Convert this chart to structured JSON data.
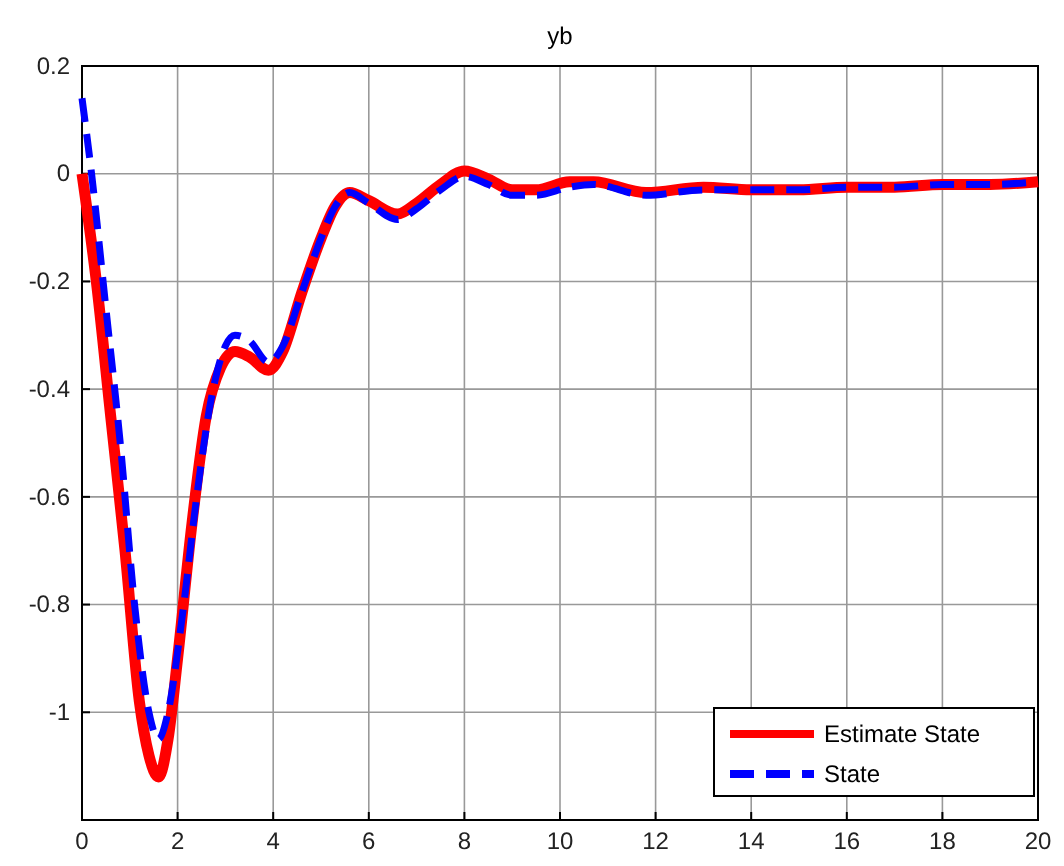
{
  "chart_data": {
    "type": "line",
    "title": "yb",
    "xlim": [
      0,
      20
    ],
    "xticks": [
      0,
      2,
      4,
      6,
      8,
      10,
      12,
      14,
      16,
      18,
      20
    ],
    "ylim": [
      -1.2,
      0.2
    ],
    "yticks": [
      {
        "value": -1.2,
        "label": null
      },
      -1,
      -0.8,
      -0.6,
      -0.4,
      -0.2,
      0,
      0.2
    ],
    "grid": true,
    "legend": "bottom right",
    "series": [
      {
        "name": "Estimate State",
        "color": "#ff0000",
        "line_style": "solid",
        "x": [
          0,
          0.3,
          0.6,
          0.9,
          1.2,
          1.4,
          1.6,
          1.8,
          2.0,
          2.3,
          2.6,
          2.9,
          3.2,
          3.5,
          3.9,
          4.2,
          4.6,
          5.0,
          5.3,
          5.6,
          6.0,
          6.6,
          7.0,
          7.5,
          8.0,
          8.5,
          9.0,
          9.5,
          10.2,
          10.7,
          11.8,
          13,
          14,
          15,
          16,
          17,
          18,
          19,
          20
        ],
        "values": [
          0,
          -0.2,
          -0.45,
          -0.7,
          -0.98,
          -1.08,
          -1.12,
          -1.05,
          -0.9,
          -0.65,
          -0.45,
          -0.36,
          -0.33,
          -0.34,
          -0.365,
          -0.33,
          -0.22,
          -0.12,
          -0.06,
          -0.035,
          -0.05,
          -0.075,
          -0.055,
          -0.02,
          0.005,
          -0.01,
          -0.03,
          -0.03,
          -0.015,
          -0.015,
          -0.035,
          -0.025,
          -0.03,
          -0.03,
          -0.025,
          -0.025,
          -0.02,
          -0.02,
          -0.015
        ]
      },
      {
        "name": "State",
        "color": "#0000ff",
        "line_style": "dashed",
        "x": [
          0,
          0.2,
          0.5,
          0.8,
          1.1,
          1.4,
          1.6,
          1.8,
          2.1,
          2.4,
          2.7,
          3.0,
          3.2,
          3.5,
          3.9,
          4.2,
          4.6,
          5.0,
          5.3,
          5.6,
          6.0,
          6.6,
          7.0,
          7.5,
          8.0,
          8.5,
          9.0,
          9.5,
          10.2,
          10.7,
          11.8,
          13,
          14,
          15,
          16,
          17,
          18,
          19,
          20
        ],
        "values": [
          0.14,
          0,
          -0.25,
          -0.5,
          -0.8,
          -1.0,
          -1.05,
          -1.0,
          -0.82,
          -0.6,
          -0.42,
          -0.32,
          -0.3,
          -0.31,
          -0.35,
          -0.32,
          -0.22,
          -0.12,
          -0.06,
          -0.035,
          -0.055,
          -0.085,
          -0.065,
          -0.03,
          -0.005,
          -0.02,
          -0.04,
          -0.04,
          -0.025,
          -0.02,
          -0.04,
          -0.03,
          -0.03,
          -0.03,
          -0.025,
          -0.025,
          -0.02,
          -0.02,
          -0.015
        ]
      }
    ]
  }
}
